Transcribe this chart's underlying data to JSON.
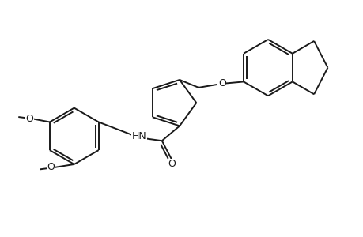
{
  "background_color": "#ffffff",
  "line_color": "#1a1a1a",
  "line_width": 1.4,
  "font_size": 9,
  "figsize": [
    4.6,
    3.0
  ],
  "dpi": 100,
  "xlim": [
    0,
    9.2
  ],
  "ylim": [
    0,
    6.0
  ]
}
